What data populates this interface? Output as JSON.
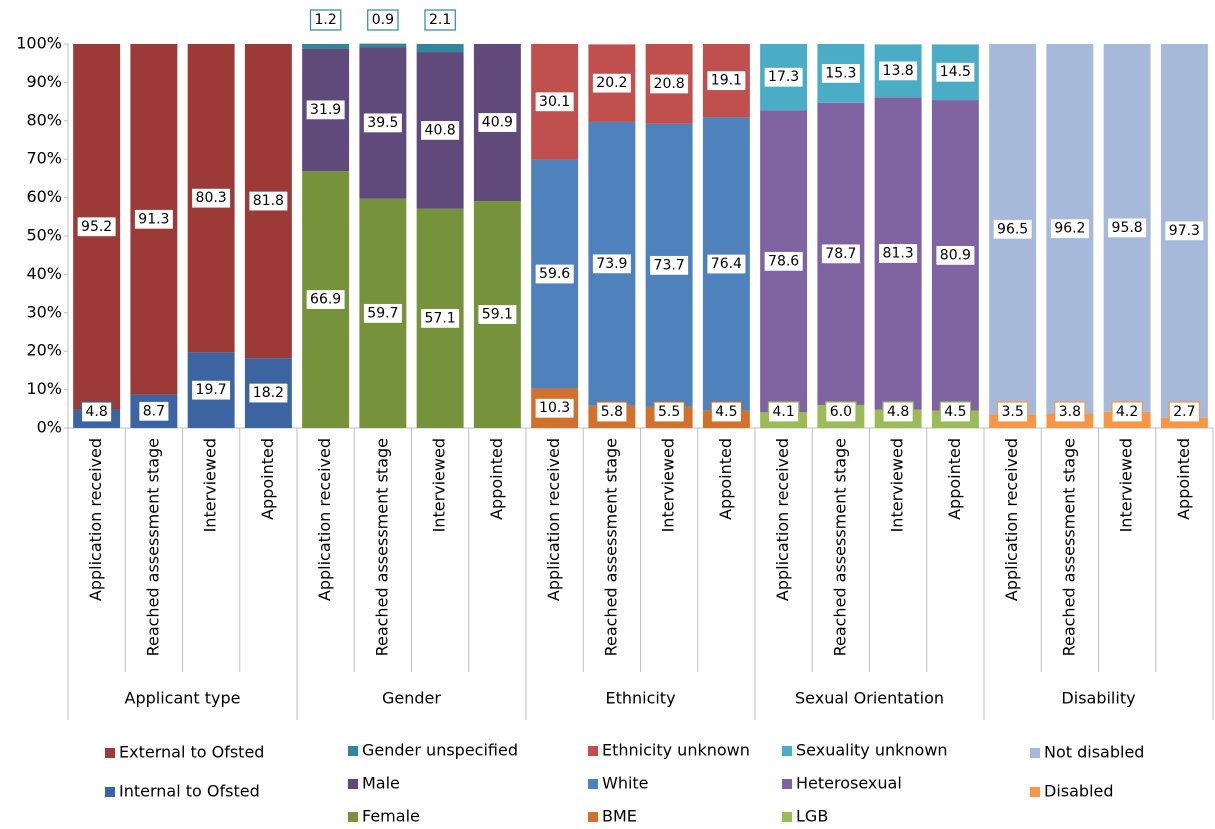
{
  "chart_data": {
    "type": "bar",
    "stacked": true,
    "ylim": [
      0,
      100
    ],
    "yticks": [
      {
        "value": 0,
        "label": "0%"
      },
      {
        "value": 10,
        "label": "10%"
      },
      {
        "value": 20,
        "label": "20%"
      },
      {
        "value": 30,
        "label": "30%"
      },
      {
        "value": 40,
        "label": "40%"
      },
      {
        "value": 50,
        "label": "50%"
      },
      {
        "value": 60,
        "label": "60%"
      },
      {
        "value": 70,
        "label": "70%"
      },
      {
        "value": 80,
        "label": "80%"
      },
      {
        "value": 90,
        "label": "90%"
      },
      {
        "value": 100,
        "label": "100%"
      }
    ],
    "groups": [
      {
        "name": "Applicant type",
        "categories": [
          "Application received",
          "Reached assessment stage",
          "Interviewed",
          "Appointed"
        ],
        "series": [
          {
            "name": "Internal to Ofsted",
            "color": "#3b64a0",
            "values": [
              4.8,
              8.7,
              19.7,
              18.2
            ]
          },
          {
            "name": "External to Ofsted",
            "color": "#9c3a38",
            "values": [
              95.2,
              91.3,
              80.3,
              81.8
            ]
          }
        ]
      },
      {
        "name": "Gender",
        "categories": [
          "Application received",
          "Reached assessment stage",
          "Interviewed",
          "Appointed"
        ],
        "series": [
          {
            "name": "Female",
            "color": "#76933c",
            "values": [
              66.9,
              59.7,
              57.1,
              59.1
            ]
          },
          {
            "name": "Male",
            "color": "#604a7b",
            "values": [
              31.9,
              39.5,
              40.8,
              40.9
            ]
          },
          {
            "name": "Gender unspecified",
            "color": "#31859c",
            "values": [
              1.2,
              0.9,
              2.1,
              null
            ]
          }
        ]
      },
      {
        "name": "Ethnicity",
        "categories": [
          "Application received",
          "Reached assessment stage",
          "Interviewed",
          "Appointed"
        ],
        "series": [
          {
            "name": "BME",
            "color": "#d2712c",
            "values": [
              10.3,
              5.8,
              5.5,
              4.5
            ]
          },
          {
            "name": "White",
            "color": "#4f81bd",
            "values": [
              59.6,
              73.9,
              73.7,
              76.4
            ]
          },
          {
            "name": "Ethnicity unknown",
            "color": "#c0504d",
            "values": [
              30.1,
              20.2,
              20.8,
              19.1
            ]
          }
        ]
      },
      {
        "name": "Sexual Orientation",
        "categories": [
          "Application received",
          "Reached assessment stage",
          "Interviewed",
          "Appointed"
        ],
        "series": [
          {
            "name": "LGB",
            "color": "#9bbb59",
            "values": [
              4.1,
              6.0,
              4.8,
              4.5
            ],
            "value_labels": [
              "4.1",
              "6.0",
              "4.8",
              "4.5"
            ]
          },
          {
            "name": "Heterosexual",
            "color": "#8064a2",
            "values": [
              78.6,
              78.7,
              81.3,
              80.9
            ]
          },
          {
            "name": "Sexuality unknown",
            "color": "#4bacc6",
            "values": [
              17.3,
              15.3,
              13.8,
              14.5
            ]
          }
        ]
      },
      {
        "name": "Disability",
        "categories": [
          "Application received",
          "Reached assessment stage",
          "Interviewed",
          "Appointed"
        ],
        "series": [
          {
            "name": "Disabled",
            "color": "#f79646",
            "values": [
              3.5,
              3.8,
              4.2,
              2.7
            ]
          },
          {
            "name": "Not disabled",
            "color": "#a7b9da",
            "values": [
              96.5,
              96.2,
              95.8,
              97.3
            ]
          }
        ]
      }
    ]
  }
}
